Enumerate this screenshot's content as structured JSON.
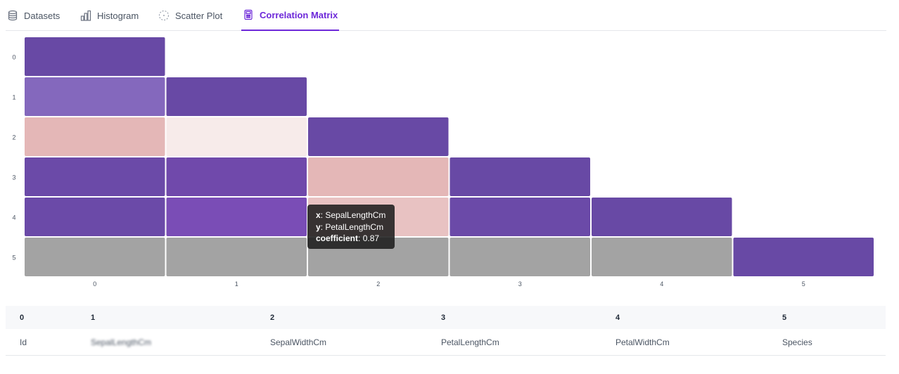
{
  "tabs": [
    {
      "label": "Datasets",
      "icon": "database-icon",
      "active": false
    },
    {
      "label": "Histogram",
      "icon": "histogram-icon",
      "active": false
    },
    {
      "label": "Scatter Plot",
      "icon": "scatter-plot-icon",
      "active": false
    },
    {
      "label": "Correlation Matrix",
      "icon": "calculator-icon",
      "active": true
    }
  ],
  "colors": {
    "accent": "#6d28d9",
    "positive_scale": [
      "#f7ebea",
      "#e4b7b7",
      "#8468bd",
      "#6b4aa8",
      "#7a4db6"
    ],
    "na": "#a3a3a3"
  },
  "chart_data": {
    "type": "heatmap",
    "x_categories": [
      "0",
      "1",
      "2",
      "3",
      "4",
      "5"
    ],
    "y_categories": [
      "0",
      "1",
      "2",
      "3",
      "4",
      "5"
    ],
    "cells": [
      {
        "x": 0,
        "y": 0,
        "color": "#6849a5"
      },
      {
        "x": 0,
        "y": 1,
        "color": "#8468bd"
      },
      {
        "x": 1,
        "y": 1,
        "color": "#6849a5"
      },
      {
        "x": 0,
        "y": 2,
        "color": "#e4b7b7"
      },
      {
        "x": 1,
        "y": 2,
        "color": "#f7ebea"
      },
      {
        "x": 2,
        "y": 2,
        "color": "#6849a5"
      },
      {
        "x": 0,
        "y": 3,
        "color": "#6b4aa8"
      },
      {
        "x": 1,
        "y": 3,
        "color": "#7049ab"
      },
      {
        "x": 2,
        "y": 3,
        "color": "#e4b7b7"
      },
      {
        "x": 3,
        "y": 3,
        "color": "#6849a5"
      },
      {
        "x": 0,
        "y": 4,
        "color": "#6b4aa8"
      },
      {
        "x": 1,
        "y": 4,
        "color": "#7a4db6"
      },
      {
        "x": 2,
        "y": 4,
        "color": "#e8c2c2"
      },
      {
        "x": 3,
        "y": 4,
        "color": "#6b4aa8"
      },
      {
        "x": 4,
        "y": 4,
        "color": "#6849a5"
      },
      {
        "x": 0,
        "y": 5,
        "color": "#a3a3a3"
      },
      {
        "x": 1,
        "y": 5,
        "color": "#a3a3a3"
      },
      {
        "x": 2,
        "y": 5,
        "color": "#a3a3a3"
      },
      {
        "x": 3,
        "y": 5,
        "color": "#a3a3a3"
      },
      {
        "x": 4,
        "y": 5,
        "color": "#a3a3a3"
      },
      {
        "x": 5,
        "y": 5,
        "color": "#6849a5"
      }
    ],
    "tooltip": {
      "x_key": "x",
      "x_value": "SepalLengthCm",
      "y_key": "y",
      "y_value": "PetalLengthCm",
      "coef_key": "coefficient",
      "coef_value": "0.87"
    }
  },
  "table": {
    "headers": [
      "0",
      "1",
      "2",
      "3",
      "4",
      "5"
    ],
    "row": [
      "Id",
      "SepalLengthCm",
      "SepalWidthCm",
      "PetalLengthCm",
      "PetalWidthCm",
      "Species"
    ]
  }
}
